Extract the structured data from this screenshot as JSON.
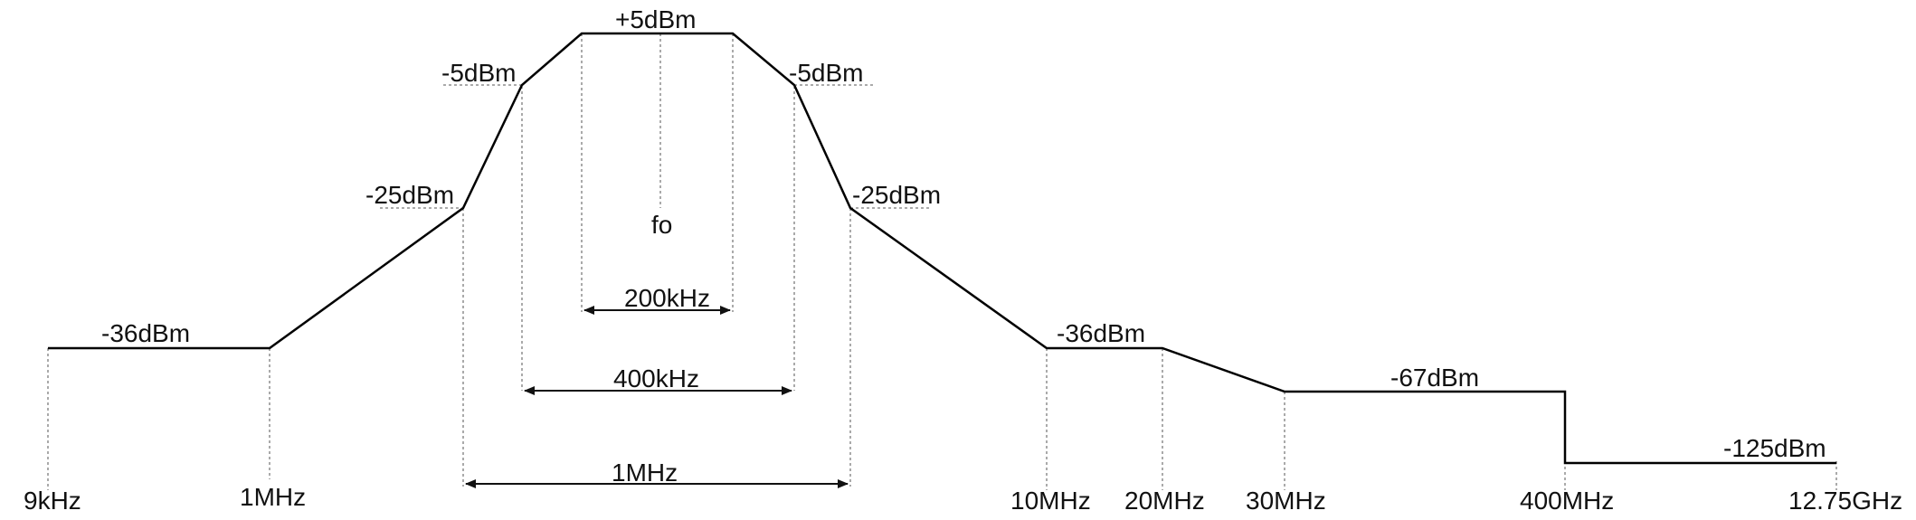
{
  "colors": {
    "mask_line": "#000000",
    "text": "#111111",
    "guide": "#555555"
  },
  "levels": {
    "peak": "+5dBm",
    "minus5_left": "-5dBm",
    "minus5_right": "-5dBm",
    "minus25_left": "-25dBm",
    "minus25_right": "-25dBm",
    "minus36_left": "-36dBm",
    "minus36_right": "-36dBm",
    "minus67": "-67dBm",
    "minus125": "-125dBm"
  },
  "center": {
    "label": "fo"
  },
  "spans": {
    "narrow": "200kHz",
    "mid": "400kHz",
    "wide": "1MHz"
  },
  "frequencies": {
    "f_9khz": "9kHz",
    "f_1mhz": "1MHz",
    "f_10mhz": "10MHz",
    "f_20mhz": "20MHz",
    "f_30mhz": "30MHz",
    "f_400mhz": "400MHz",
    "f_1275ghz": "12.75GHz"
  }
}
